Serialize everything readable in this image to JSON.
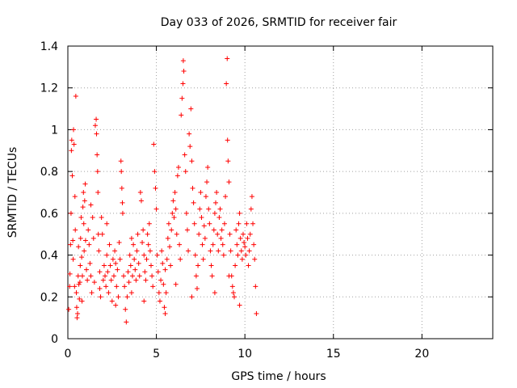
{
  "chart_data": {
    "type": "scatter",
    "title": "Day 033 of 2026, SRMTID for receiver fair",
    "xlabel": "GPS time / hours",
    "ylabel": "SRMTID / TECUs",
    "xlim": [
      0,
      24
    ],
    "ylim": [
      0,
      1.4
    ],
    "x_ticks": [
      0,
      5,
      10,
      15,
      20
    ],
    "x_tick_labels": [
      "0",
      "5",
      "10",
      "15",
      "20"
    ],
    "y_ticks": [
      0,
      0.2,
      0.4,
      0.6,
      0.8,
      1.0,
      1.2,
      1.4
    ],
    "y_tick_labels": [
      "0",
      "0.2",
      "0.4",
      "0.6",
      "0.8",
      "1",
      "1.2",
      "1.4"
    ],
    "grid": true,
    "marker": "+",
    "series": [
      {
        "name": "SRMTID",
        "color": "#ff0000",
        "points": [
          [
            0.05,
            0.14
          ],
          [
            0.1,
            0.25
          ],
          [
            0.12,
            0.31
          ],
          [
            0.15,
            0.45
          ],
          [
            0.18,
            0.6
          ],
          [
            0.2,
            0.9
          ],
          [
            0.22,
            0.95
          ],
          [
            0.25,
            0.78
          ],
          [
            0.28,
            0.47
          ],
          [
            0.3,
            0.38
          ],
          [
            0.32,
            1.0
          ],
          [
            0.35,
            0.93
          ],
          [
            0.38,
            0.25
          ],
          [
            0.4,
            0.68
          ],
          [
            0.42,
            0.52
          ],
          [
            0.45,
            1.16
          ],
          [
            0.48,
            0.22
          ],
          [
            0.5,
            0.15
          ],
          [
            0.52,
            0.1
          ],
          [
            0.55,
            0.12
          ],
          [
            0.58,
            0.3
          ],
          [
            0.6,
            0.44
          ],
          [
            0.62,
            0.26
          ],
          [
            0.65,
            0.19
          ],
          [
            0.68,
            0.27
          ],
          [
            0.7,
            0.35
          ],
          [
            0.72,
            0.48
          ],
          [
            0.75,
            0.58
          ],
          [
            0.78,
            0.39
          ],
          [
            0.8,
            0.18
          ],
          [
            0.82,
            0.3
          ],
          [
            0.85,
            0.63
          ],
          [
            0.88,
            0.7
          ],
          [
            0.9,
            0.55
          ],
          [
            0.92,
            0.42
          ],
          [
            0.95,
            0.66
          ],
          [
            0.98,
            0.74
          ],
          [
            1.0,
            0.47
          ],
          [
            1.05,
            0.33
          ],
          [
            1.1,
            0.28
          ],
          [
            1.15,
            0.52
          ],
          [
            1.2,
            0.45
          ],
          [
            1.25,
            0.36
          ],
          [
            1.3,
            0.3
          ],
          [
            1.35,
            0.22
          ],
          [
            1.4,
            0.58
          ],
          [
            1.45,
            0.48
          ],
          [
            1.5,
            0.27
          ],
          [
            1.55,
            1.02
          ],
          [
            1.6,
            1.05
          ],
          [
            1.62,
            0.98
          ],
          [
            1.65,
            0.88
          ],
          [
            1.68,
            0.8
          ],
          [
            1.7,
            0.7
          ],
          [
            1.72,
            0.5
          ],
          [
            1.75,
            0.42
          ],
          [
            1.8,
            0.32
          ],
          [
            1.85,
            0.2
          ],
          [
            1.9,
            0.58
          ],
          [
            1.95,
            0.5
          ],
          [
            2.0,
            0.28
          ],
          [
            2.05,
            0.35
          ],
          [
            2.1,
            0.3
          ],
          [
            2.15,
            0.25
          ],
          [
            2.2,
            0.4
          ],
          [
            2.25,
            0.32
          ],
          [
            2.3,
            0.22
          ],
          [
            2.35,
            0.45
          ],
          [
            2.4,
            0.35
          ],
          [
            2.45,
            0.28
          ],
          [
            2.5,
            0.18
          ],
          [
            2.55,
            0.38
          ],
          [
            2.6,
            0.3
          ],
          [
            2.65,
            0.42
          ],
          [
            2.7,
            0.36
          ],
          [
            2.75,
            0.25
          ],
          [
            2.8,
            0.33
          ],
          [
            2.85,
            0.2
          ],
          [
            2.9,
            0.46
          ],
          [
            2.95,
            0.38
          ],
          [
            3.0,
            0.85
          ],
          [
            3.02,
            0.8
          ],
          [
            3.05,
            0.72
          ],
          [
            3.08,
            0.65
          ],
          [
            3.1,
            0.6
          ],
          [
            3.15,
            0.3
          ],
          [
            3.2,
            0.25
          ],
          [
            3.25,
            0.14
          ],
          [
            3.3,
            0.08
          ],
          [
            3.35,
            0.2
          ],
          [
            3.4,
            0.32
          ],
          [
            3.45,
            0.27
          ],
          [
            3.5,
            0.4
          ],
          [
            3.55,
            0.35
          ],
          [
            3.6,
            0.22
          ],
          [
            3.65,
            0.3
          ],
          [
            3.7,
            0.45
          ],
          [
            3.75,
            0.38
          ],
          [
            3.8,
            0.33
          ],
          [
            3.85,
            0.28
          ],
          [
            3.9,
            0.42
          ],
          [
            3.95,
            0.5
          ],
          [
            4.0,
            0.36
          ],
          [
            4.05,
            0.3
          ],
          [
            4.1,
            0.7
          ],
          [
            4.15,
            0.66
          ],
          [
            4.2,
            0.46
          ],
          [
            4.25,
            0.52
          ],
          [
            4.3,
            0.4
          ],
          [
            4.35,
            0.32
          ],
          [
            4.4,
            0.28
          ],
          [
            4.45,
            0.38
          ],
          [
            4.5,
            0.5
          ],
          [
            4.55,
            0.45
          ],
          [
            4.6,
            0.55
          ],
          [
            4.65,
            0.42
          ],
          [
            4.7,
            0.35
          ],
          [
            4.75,
            0.3
          ],
          [
            4.8,
            0.25
          ],
          [
            4.85,
            0.93
          ],
          [
            4.9,
            0.8
          ],
          [
            4.95,
            0.72
          ],
          [
            5.0,
            0.62
          ],
          [
            5.05,
            0.4
          ],
          [
            5.1,
            0.32
          ],
          [
            5.15,
            0.22
          ],
          [
            5.2,
            0.18
          ],
          [
            5.25,
            0.28
          ],
          [
            5.3,
            0.42
          ],
          [
            5.35,
            0.36
          ],
          [
            5.4,
            0.26
          ],
          [
            5.45,
            0.15
          ],
          [
            5.5,
            0.12
          ],
          [
            5.55,
            0.22
          ],
          [
            5.6,
            0.38
          ],
          [
            5.65,
            0.48
          ],
          [
            5.7,
            0.55
          ],
          [
            5.75,
            0.44
          ],
          [
            5.8,
            0.35
          ],
          [
            5.85,
            0.52
          ],
          [
            5.9,
            0.6
          ],
          [
            5.95,
            0.66
          ],
          [
            6.0,
            0.58
          ],
          [
            6.05,
            0.7
          ],
          [
            6.1,
            0.62
          ],
          [
            6.15,
            0.5
          ],
          [
            6.2,
            0.78
          ],
          [
            6.25,
            0.82
          ],
          [
            6.3,
            0.45
          ],
          [
            6.35,
            0.38
          ],
          [
            6.4,
            1.07
          ],
          [
            6.45,
            1.15
          ],
          [
            6.5,
            1.22
          ],
          [
            6.52,
            1.33
          ],
          [
            6.55,
            1.28
          ],
          [
            6.6,
            0.88
          ],
          [
            6.65,
            0.8
          ],
          [
            6.7,
            0.6
          ],
          [
            6.75,
            0.52
          ],
          [
            6.8,
            0.42
          ],
          [
            6.85,
            0.98
          ],
          [
            6.9,
            0.92
          ],
          [
            6.95,
            1.1
          ],
          [
            7.0,
            0.85
          ],
          [
            7.05,
            0.72
          ],
          [
            7.1,
            0.65
          ],
          [
            7.15,
            0.55
          ],
          [
            7.2,
            0.4
          ],
          [
            7.25,
            0.3
          ],
          [
            7.3,
            0.24
          ],
          [
            7.35,
            0.35
          ],
          [
            7.4,
            0.5
          ],
          [
            7.45,
            0.62
          ],
          [
            7.5,
            0.7
          ],
          [
            7.55,
            0.58
          ],
          [
            7.6,
            0.45
          ],
          [
            7.65,
            0.38
          ],
          [
            7.7,
            0.54
          ],
          [
            7.75,
            0.48
          ],
          [
            7.8,
            0.68
          ],
          [
            7.85,
            0.75
          ],
          [
            7.9,
            0.82
          ],
          [
            7.95,
            0.62
          ],
          [
            8.0,
            0.55
          ],
          [
            8.05,
            0.42
          ],
          [
            8.1,
            0.35
          ],
          [
            8.15,
            0.3
          ],
          [
            8.2,
            0.45
          ],
          [
            8.25,
            0.52
          ],
          [
            8.3,
            0.6
          ],
          [
            8.35,
            0.65
          ],
          [
            8.4,
            0.7
          ],
          [
            8.45,
            0.5
          ],
          [
            8.5,
            0.42
          ],
          [
            8.55,
            0.58
          ],
          [
            8.6,
            0.62
          ],
          [
            8.65,
            0.48
          ],
          [
            8.7,
            0.52
          ],
          [
            8.75,
            0.45
          ],
          [
            8.8,
            0.4
          ],
          [
            8.85,
            0.55
          ],
          [
            8.9,
            0.68
          ],
          [
            8.95,
            1.22
          ],
          [
            9.0,
            1.34
          ],
          [
            9.02,
            0.95
          ],
          [
            9.05,
            0.85
          ],
          [
            9.1,
            0.75
          ],
          [
            9.15,
            0.5
          ],
          [
            9.2,
            0.42
          ],
          [
            9.25,
            0.3
          ],
          [
            9.3,
            0.25
          ],
          [
            9.35,
            0.22
          ],
          [
            9.4,
            0.2
          ],
          [
            9.45,
            0.35
          ],
          [
            9.5,
            0.52
          ],
          [
            9.55,
            0.45
          ],
          [
            9.6,
            0.4
          ],
          [
            9.65,
            0.55
          ],
          [
            9.7,
            0.6
          ],
          [
            9.75,
            0.48
          ],
          [
            9.8,
            0.42
          ],
          [
            9.85,
            0.38
          ],
          [
            9.9,
            0.5
          ],
          [
            9.95,
            0.46
          ],
          [
            10.0,
            0.44
          ],
          [
            10.05,
            0.4
          ],
          [
            10.1,
            0.55
          ],
          [
            10.15,
            0.48
          ],
          [
            10.2,
            0.35
          ],
          [
            10.25,
            0.42
          ],
          [
            10.3,
            0.5
          ],
          [
            10.35,
            0.62
          ],
          [
            10.4,
            0.68
          ],
          [
            10.45,
            0.55
          ],
          [
            10.5,
            0.45
          ],
          [
            10.55,
            0.38
          ],
          [
            10.6,
            0.25
          ],
          [
            10.65,
            0.12
          ],
          [
            1.3,
            0.64
          ],
          [
            2.2,
            0.55
          ],
          [
            3.6,
            0.48
          ],
          [
            5.5,
            0.33
          ],
          [
            6.1,
            0.26
          ],
          [
            7.0,
            0.2
          ],
          [
            8.3,
            0.22
          ],
          [
            9.1,
            0.3
          ],
          [
            9.7,
            0.16
          ],
          [
            1.8,
            0.24
          ],
          [
            2.7,
            0.16
          ],
          [
            4.3,
            0.18
          ]
        ]
      }
    ]
  }
}
